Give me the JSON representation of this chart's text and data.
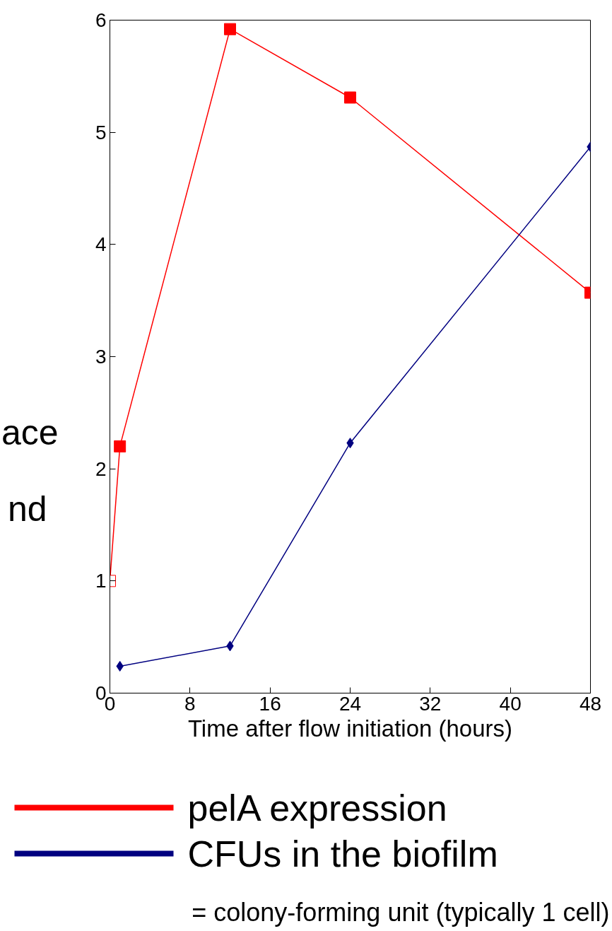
{
  "chart_data": {
    "type": "line",
    "xlabel": "Time after flow initiation (hours)",
    "xlim": [
      0,
      48
    ],
    "xticks": [
      0,
      8,
      16,
      24,
      32,
      40,
      48
    ],
    "ylim": [
      0,
      6
    ],
    "yticks": [
      0,
      1,
      2,
      3,
      4,
      5,
      6
    ],
    "legend": "bottom",
    "grid": false,
    "series": [
      {
        "name": "pelA expression",
        "color": "#ff0000",
        "marker": "square",
        "x": [
          0,
          1,
          12,
          24,
          48
        ],
        "values": [
          1.0,
          2.2,
          5.92,
          5.31,
          3.57
        ],
        "colors": [
          "#ffffff",
          "#ff0000",
          "#ff0000",
          "#ff0000",
          "#ff0000"
        ]
      },
      {
        "name": "CFUs in the biofilm",
        "color": "#000080",
        "marker": "diamond",
        "x": [
          1,
          12,
          24,
          48
        ],
        "values": [
          0.24,
          0.42,
          2.23,
          4.87
        ]
      }
    ],
    "annotations": [
      "ace",
      "nd",
      "= colony-forming unit (typically 1 cell)"
    ]
  }
}
